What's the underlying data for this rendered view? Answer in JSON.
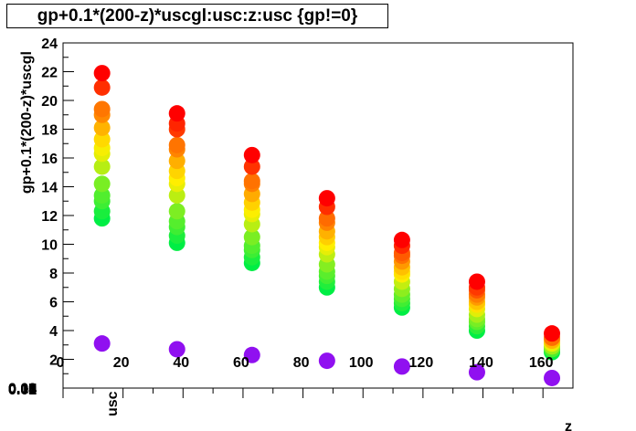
{
  "chart_data": {
    "type": "scatter",
    "title": "gp+0.1*(200-z)*uscgl:usc:z:usc {gp!=0}",
    "xlabel": "z",
    "ylabel": "gp+0.1*(200-z)*uscgl",
    "zlabel": "usc",
    "xlim": [
      0,
      170
    ],
    "ylim": [
      0,
      24
    ],
    "x_ticks": [
      "0",
      "20",
      "40",
      "60",
      "80",
      "100",
      "120",
      "140",
      "160"
    ],
    "y_ticks": [
      "0",
      "2",
      "4",
      "6",
      "8",
      "10",
      "12",
      "14",
      "16",
      "18",
      "20",
      "22",
      "24"
    ],
    "z_ticks": [
      "0.00",
      "0.01",
      "0.02",
      "0.03",
      "0.04",
      "0.05",
      "0.06",
      "0.07",
      "0.08",
      "0.09",
      "0.10"
    ],
    "groups": [
      {
        "x": 13,
        "color_values": [
          11.8,
          12.3,
          13.0,
          13.4,
          14.2,
          15.4,
          16.3,
          16.7,
          17.3,
          18.1,
          19.0,
          19.4,
          20.9,
          21.9
        ]
      },
      {
        "x": 38,
        "color_values": [
          10.1,
          10.6,
          11.2,
          11.6,
          12.3,
          13.4,
          14.2,
          14.6,
          15.1,
          15.8,
          16.6,
          16.9,
          18.0,
          18.4,
          19.1
        ]
      },
      {
        "x": 63,
        "color_values": [
          8.7,
          9.1,
          9.6,
          9.9,
          10.5,
          11.4,
          12.1,
          12.4,
          12.9,
          13.5,
          14.2,
          14.4,
          15.4,
          16.2
        ]
      },
      {
        "x": 88,
        "color_values": [
          7.0,
          7.4,
          7.8,
          8.1,
          8.6,
          9.3,
          9.8,
          10.1,
          10.5,
          10.9,
          11.5,
          11.8,
          12.6,
          13.2
        ]
      },
      {
        "x": 113,
        "color_values": [
          5.6,
          5.9,
          6.2,
          6.5,
          6.9,
          7.4,
          7.9,
          8.1,
          8.4,
          8.8,
          9.2,
          9.4,
          9.9,
          10.3
        ]
      },
      {
        "x": 138,
        "color_values": [
          4.0,
          4.3,
          4.6,
          4.8,
          5.1,
          5.5,
          5.8,
          6.0,
          6.3,
          6.5,
          6.8,
          7.0,
          7.4
        ]
      },
      {
        "x": 163,
        "color_values": [
          2.5,
          2.7,
          2.9,
          3.1,
          3.3,
          3.5,
          3.8
        ]
      }
    ],
    "baseline_points": [
      {
        "x": 13,
        "y": 3.1
      },
      {
        "x": 38,
        "y": 2.7
      },
      {
        "x": 63,
        "y": 2.3
      },
      {
        "x": 88,
        "y": 1.9
      },
      {
        "x": 113,
        "y": 1.5
      },
      {
        "x": 138,
        "y": 1.1
      },
      {
        "x": 163,
        "y": 0.7
      }
    ],
    "colors": {
      "low": "#00ee44",
      "mid": "#ffee00",
      "high": "#ff0000",
      "baseline": "#9010f0"
    },
    "grid": false
  }
}
